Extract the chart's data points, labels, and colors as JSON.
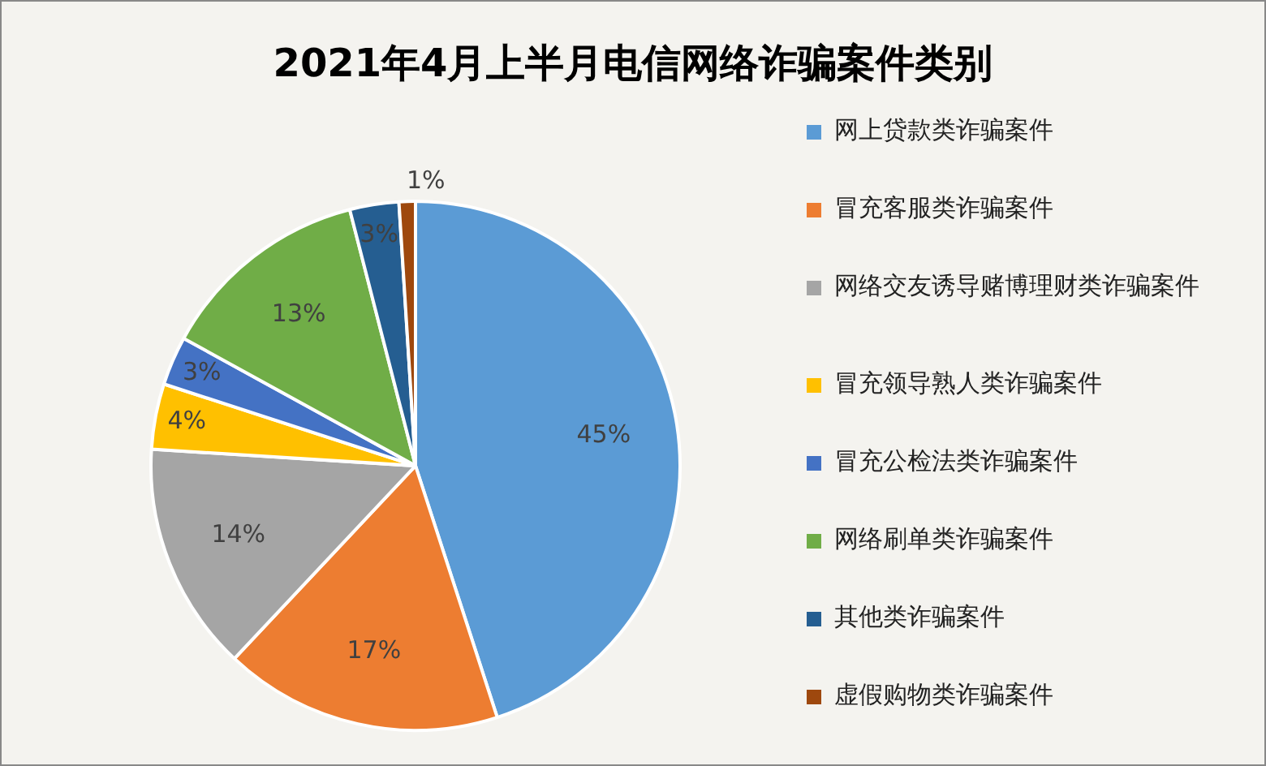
{
  "chart_data": {
    "type": "pie",
    "title": "2021年4月上半月电信网络诈骗案件类别",
    "categories": [
      "网上贷款类诈骗案件",
      "冒充客服类诈骗案件",
      "网络交友诱导赌博理财类诈骗案件",
      "冒充领导熟人类诈骗案件",
      "冒充公检法类诈骗案件",
      "网络刷单类诈骗案件",
      "其他类诈骗案件",
      "虚假购物类诈骗案件"
    ],
    "values": [
      45,
      17,
      14,
      4,
      3,
      13,
      3,
      1
    ],
    "colors": [
      "#5b9bd5",
      "#ed7d31",
      "#a5a5a5",
      "#ffc000",
      "#4472c4",
      "#70ad47",
      "#255e91",
      "#9e480e"
    ],
    "value_labels": [
      "45%",
      "17%",
      "14%",
      "4%",
      "3%",
      "13%",
      "3%",
      "1%"
    ],
    "legend": "right"
  }
}
